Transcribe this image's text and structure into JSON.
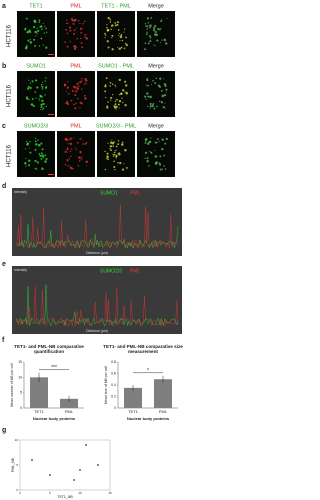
{
  "image_rows": [
    {
      "letter": "a",
      "cell_line": "HCT116",
      "titles": [
        "TET1",
        "PML",
        "TET1 - PML",
        "Merge"
      ]
    },
    {
      "letter": "b",
      "cell_line": "HCT116",
      "titles": [
        "SUMO1",
        "PML",
        "SUMO1 - PML",
        "Merge"
      ]
    },
    {
      "letter": "c",
      "cell_line": "HCT116",
      "titles": [
        "SUMO2/3",
        "PML",
        "SUMO2/3 - PML",
        "Merge"
      ]
    }
  ],
  "profiles": [
    {
      "letter": "d",
      "y_label": "Intensity",
      "x_label": "Distance (µm)",
      "legend": [
        "SUMO1",
        "PML"
      ]
    },
    {
      "letter": "e",
      "y_label": "Intensity",
      "x_label": "Distance (µm)",
      "legend": [
        "SUMO2/3",
        "PML"
      ]
    }
  ],
  "letters": {
    "f": "f",
    "g": "g"
  },
  "chart_data": [
    {
      "type": "bar",
      "title": "TET1- and PML-NB comparative quantification",
      "y_label": "Mean number of NB per cell",
      "x_label": "Nuclear body proteins",
      "categories": [
        "TET1",
        "PML"
      ],
      "values": [
        10,
        3
      ],
      "errors": [
        1.5,
        1
      ],
      "color": "#7f7f7f",
      "ylim": [
        0,
        15
      ],
      "yticks": [
        0,
        5,
        10,
        15
      ],
      "annotation": "***"
    },
    {
      "type": "bar",
      "title": "TET1- and PML-NB comparative size measurement",
      "y_label": "Mean size of NB per cell",
      "x_label": "Nuclear body proteins",
      "categories": [
        "TET1",
        "PML"
      ],
      "values": [
        0.35,
        0.5
      ],
      "errors": [
        0.05,
        0.06
      ],
      "color": "#7f7f7f",
      "ylim": [
        0,
        0.8
      ],
      "yticks": [
        0,
        0.2,
        0.4,
        0.6,
        0.8
      ],
      "annotation": "*"
    },
    {
      "type": "scatter",
      "x_label": "TET1_NB",
      "y_label": "PML_NB",
      "x": [
        2,
        5,
        9,
        11,
        13,
        10
      ],
      "y": [
        6,
        3,
        2,
        9,
        5,
        4
      ],
      "color": "#333",
      "xlim": [
        0,
        15
      ],
      "ylim": [
        0,
        10
      ],
      "xticks": [
        0,
        5,
        10,
        15
      ],
      "yticks": [
        0,
        5,
        10
      ]
    }
  ]
}
